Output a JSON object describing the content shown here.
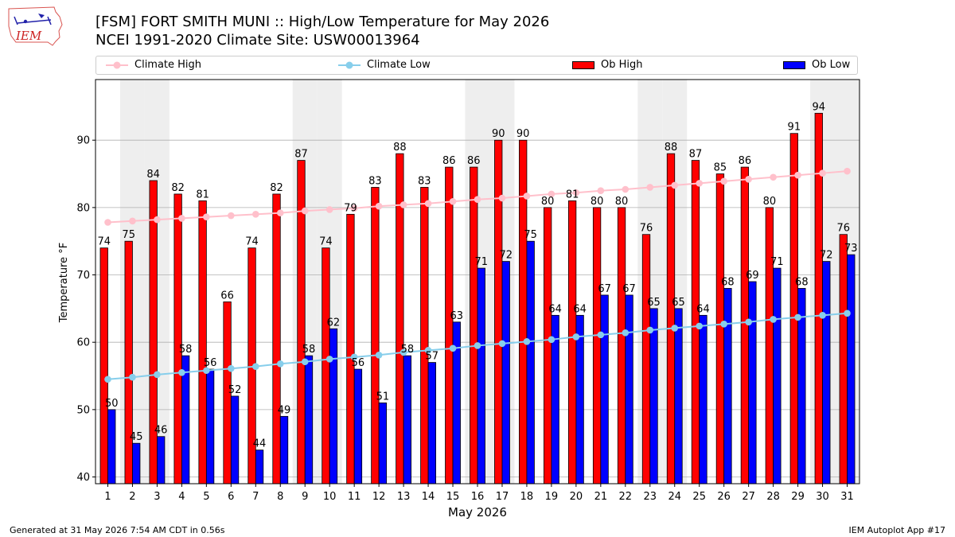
{
  "header": {
    "title_line1": "[FSM] FORT SMITH MUNI :: High/Low Temperature for May 2026",
    "title_line2": "NCEI 1991-2020 Climate Site: USW00013964",
    "logo_text": "IEM"
  },
  "legend": {
    "climate_high": "Climate High",
    "climate_low": "Climate Low",
    "ob_high": "Ob High",
    "ob_low": "Ob Low"
  },
  "footer": {
    "generated": "Generated at 31 May 2026 7:54 AM CDT in 0.56s",
    "app": "IEM Autoplot App #17"
  },
  "colors": {
    "ob_high": "#ff0000",
    "ob_low": "#0000ff",
    "climate_high": "#ffc0cb",
    "climate_low": "#87ceeb",
    "weekend_band": "#eeeeee",
    "grid": "#b0b0b0"
  },
  "chart_data": {
    "type": "bar",
    "xlabel": "May 2026",
    "ylabel": "Temperature °F",
    "ylim": [
      39,
      99
    ],
    "yticks": [
      40,
      50,
      60,
      70,
      80,
      90
    ],
    "grid": "horizontal",
    "legend_position": "top",
    "categories": [
      "1",
      "2",
      "3",
      "4",
      "5",
      "6",
      "7",
      "8",
      "9",
      "10",
      "11",
      "12",
      "13",
      "14",
      "15",
      "16",
      "17",
      "18",
      "19",
      "20",
      "21",
      "22",
      "23",
      "24",
      "25",
      "26",
      "27",
      "28",
      "29",
      "30",
      "31"
    ],
    "weekend_days": [
      2,
      3,
      9,
      10,
      16,
      17,
      23,
      24,
      30,
      31
    ],
    "series": [
      {
        "name": "Ob High",
        "kind": "bar",
        "values": [
          74,
          75,
          84,
          82,
          81,
          66,
          74,
          82,
          87,
          74,
          79,
          83,
          88,
          83,
          86,
          86,
          90,
          90,
          80,
          81,
          80,
          80,
          76,
          88,
          87,
          85,
          86,
          80,
          91,
          94,
          76
        ]
      },
      {
        "name": "Ob Low",
        "kind": "bar",
        "values": [
          50,
          45,
          46,
          58,
          56,
          52,
          44,
          49,
          58,
          62,
          56,
          51,
          58,
          57,
          63,
          71,
          72,
          75,
          64,
          64,
          67,
          67,
          65,
          65,
          64,
          68,
          69,
          71,
          68,
          72,
          73
        ]
      },
      {
        "name": "Climate High",
        "kind": "line",
        "values": [
          77.8,
          78.0,
          78.2,
          78.4,
          78.6,
          78.8,
          79.0,
          79.2,
          79.5,
          79.7,
          79.9,
          80.2,
          80.4,
          80.6,
          80.9,
          81.2,
          81.4,
          81.7,
          82.0,
          82.2,
          82.5,
          82.7,
          83.0,
          83.3,
          83.6,
          83.9,
          84.2,
          84.5,
          84.8,
          85.1,
          85.4
        ]
      },
      {
        "name": "Climate Low",
        "kind": "line",
        "values": [
          54.5,
          54.8,
          55.2,
          55.5,
          55.8,
          56.1,
          56.4,
          56.8,
          57.1,
          57.5,
          57.8,
          58.1,
          58.5,
          58.8,
          59.1,
          59.5,
          59.8,
          60.1,
          60.4,
          60.8,
          61.1,
          61.4,
          61.8,
          62.1,
          62.4,
          62.7,
          63.0,
          63.4,
          63.7,
          64.0,
          64.3
        ]
      }
    ]
  }
}
